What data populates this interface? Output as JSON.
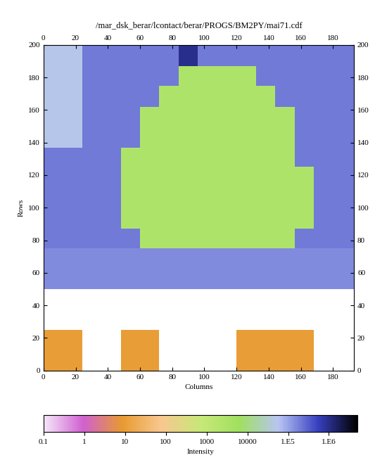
{
  "chart_data": {
    "type": "heatmap",
    "title": "/mar_dsk_berar/lcontact/berar/PROGS/BM2PY/mai71.cdf",
    "x_label": "Columns",
    "y_label": "Rows",
    "xlim": [
      0,
      193
    ],
    "xticks": [
      0,
      20,
      40,
      60,
      80,
      100,
      120,
      140,
      160,
      180
    ],
    "ylim": [
      0,
      200
    ],
    "yticks": [
      0,
      20,
      40,
      60,
      80,
      100,
      120,
      140,
      160,
      180,
      200
    ],
    "log": true,
    "x_edges": [
      0,
      12,
      24,
      36,
      48,
      60,
      72,
      84,
      96,
      108,
      120,
      132,
      144,
      156,
      168,
      180,
      193
    ],
    "y_edges": [
      0,
      25,
      50,
      62,
      75,
      87,
      100,
      112,
      125,
      137,
      150,
      162,
      175,
      187,
      200
    ],
    "cells": [
      [
        10,
        10,
        null,
        null,
        10,
        10,
        null,
        null,
        null,
        null,
        10,
        10,
        10,
        10,
        null,
        null
      ],
      [
        null,
        null,
        null,
        null,
        null,
        null,
        null,
        null,
        null,
        null,
        null,
        null,
        null,
        null,
        null,
        null
      ],
      [
        150000,
        150000,
        150000,
        150000,
        150000,
        150000,
        150000,
        150000,
        150000,
        150000,
        150000,
        150000,
        150000,
        150000,
        150000,
        150000
      ],
      [
        150000,
        150000,
        150000,
        150000,
        150000,
        150000,
        150000,
        150000,
        150000,
        150000,
        150000,
        150000,
        150000,
        150000,
        150000,
        150000
      ],
      [
        200000,
        200000,
        200000,
        200000,
        200000,
        3000,
        3000,
        3000,
        3000,
        3000,
        3000,
        3000,
        3000,
        200000,
        200000,
        200000
      ],
      [
        200000,
        200000,
        200000,
        200000,
        3000,
        3000,
        3000,
        3000,
        3000,
        3000,
        3000,
        3000,
        3000,
        3000,
        200000,
        200000
      ],
      [
        200000,
        200000,
        200000,
        200000,
        3000,
        3000,
        3000,
        3000,
        3000,
        3000,
        3000,
        3000,
        3000,
        3000,
        200000,
        200000
      ],
      [
        200000,
        200000,
        200000,
        200000,
        3000,
        3000,
        3000,
        3000,
        3000,
        3000,
        3000,
        3000,
        3000,
        3000,
        200000,
        200000
      ],
      [
        200000,
        200000,
        200000,
        200000,
        3000,
        3000,
        3000,
        3000,
        3000,
        3000,
        3000,
        3000,
        3000,
        200000,
        200000,
        200000
      ],
      [
        50000,
        50000,
        200000,
        200000,
        200000,
        3000,
        3000,
        3000,
        3000,
        3000,
        3000,
        3000,
        3000,
        200000,
        200000,
        200000
      ],
      [
        50000,
        50000,
        200000,
        200000,
        200000,
        3000,
        3000,
        3000,
        3000,
        3000,
        3000,
        3000,
        3000,
        200000,
        200000,
        200000
      ],
      [
        50000,
        50000,
        200000,
        200000,
        200000,
        200000,
        3000,
        3000,
        3000,
        3000,
        3000,
        3000,
        200000,
        200000,
        200000,
        200000
      ],
      [
        50000,
        50000,
        200000,
        200000,
        200000,
        200000,
        200000,
        3000,
        3000,
        3000,
        3000,
        200000,
        200000,
        200000,
        200000,
        200000
      ],
      [
        50000,
        50000,
        200000,
        200000,
        200000,
        200000,
        200000,
        1000000,
        200000,
        200000,
        200000,
        200000,
        200000,
        200000,
        200000,
        200000
      ]
    ],
    "colorbar": {
      "label": "Intensity",
      "range": [
        0.1,
        5000000
      ],
      "ticks": [
        0.1,
        1,
        10,
        100,
        1000,
        10000,
        {
          "value": 100000,
          "label": "1.E5"
        },
        {
          "value": 1000000,
          "label": "1.E6"
        }
      ]
    }
  }
}
